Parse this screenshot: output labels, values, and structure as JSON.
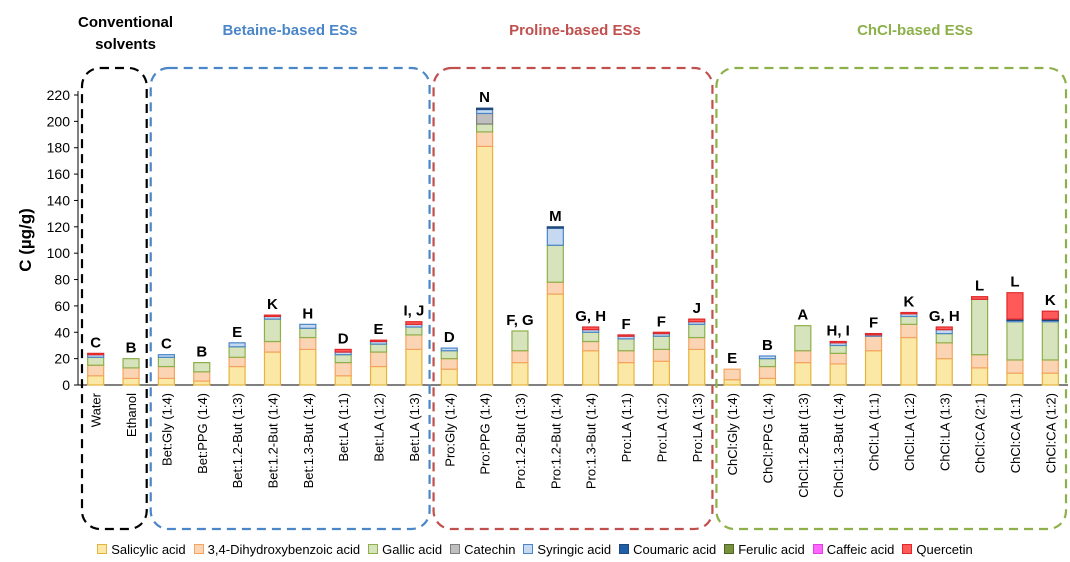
{
  "chart_data": {
    "type": "bar",
    "stacked": true,
    "ylabel": "C (µg/g)",
    "xlabel": "",
    "ylim": [
      0,
      220
    ],
    "yticks": [
      0,
      20,
      40,
      60,
      80,
      100,
      120,
      140,
      160,
      180,
      200,
      220
    ],
    "grid": false,
    "legend_position": "bottom",
    "groups": [
      {
        "title": "Conventional\nsolvents",
        "color": "#000000",
        "categories": [
          "Water",
          "Ethanol"
        ]
      },
      {
        "title": "Betaine-based ESs",
        "color": "#4a86c8",
        "categories": [
          "Bet:Gly (1:4)",
          "Bet:PPG (1:4)",
          "Bet:1.2-But (1:3)",
          "Bet:1.2-But (1:4)",
          "Bet:1.3-But (1:4)",
          "Bet:LA (1:1)",
          "Bet:LA (1:2)",
          "Bet:LA (1:3)"
        ]
      },
      {
        "title": "Proline-based ESs",
        "color": "#c0504d",
        "categories": [
          "Pro:Gly (1:4)",
          "Pro:PPG (1:4)",
          "Pro:1.2-But (1:3)",
          "Pro:1.2-But (1:4)",
          "Pro:1.3-But (1:4)",
          "Pro:LA (1:1)",
          "Pro:LA (1:2)",
          "Pro:LA (1:3)"
        ]
      },
      {
        "title": "ChCl-based ESs",
        "color": "#8db04a",
        "categories": [
          "ChCl:Gly (1:4)",
          "ChCl:PPG (1:4)",
          "ChCl:1.2-But (1:3)",
          "ChCl:1.3-But (1:4)",
          "ChCl:LA (1:1)",
          "ChCl:LA (1:2)",
          "ChCl:LA (1:3)",
          "ChCl:CA (2:1)",
          "ChCl:CA (1:1)",
          "ChCl:CA (1:2)"
        ]
      }
    ],
    "categories": [
      "Water",
      "Ethanol",
      "Bet:Gly (1:4)",
      "Bet:PPG (1:4)",
      "Bet:1.2-But (1:3)",
      "Bet:1.2-But (1:4)",
      "Bet:1.3-But (1:4)",
      "Bet:LA (1:1)",
      "Bet:LA (1:2)",
      "Bet:LA (1:3)",
      "Pro:Gly (1:4)",
      "Pro:PPG (1:4)",
      "Pro:1.2-But (1:3)",
      "Pro:1.2-But (1:4)",
      "Pro:1.3-But (1:4)",
      "Pro:LA (1:1)",
      "Pro:LA (1:2)",
      "Pro:LA (1:3)",
      "ChCl:Gly (1:4)",
      "ChCl:PPG (1:4)",
      "ChCl:1.2-But (1:3)",
      "ChCl:1.3-But (1:4)",
      "ChCl:LA (1:1)",
      "ChCl:LA (1:2)",
      "ChCl:LA (1:3)",
      "ChCl:CA (2:1)",
      "ChCl:CA (1:1)",
      "ChCl:CA (1:2)"
    ],
    "letters": [
      "C",
      "B",
      "C",
      "B",
      "E",
      "K",
      "H",
      "D",
      "E",
      "I, J",
      "D",
      "N",
      "F, G",
      "M",
      "G, H",
      "F",
      "F",
      "J",
      "E",
      "B",
      "A",
      "H, I",
      "F",
      "K",
      "G, H",
      "L",
      "L",
      "K"
    ],
    "series": [
      {
        "name": "Salicylic acid",
        "fill": "#fbe8a6",
        "stroke": "#e6b43a",
        "values": [
          7,
          5,
          5,
          3,
          14,
          25,
          27,
          7,
          14,
          27,
          12,
          181,
          17,
          69,
          26,
          17,
          18,
          27,
          4,
          5,
          17,
          16,
          26,
          36,
          20,
          13,
          9,
          9
        ]
      },
      {
        "name": "3,4-Dihydroxybenzoic acid",
        "fill": "#fbd4b4",
        "stroke": "#f4a460",
        "values": [
          8,
          8,
          9,
          7,
          7,
          8,
          9,
          10,
          11,
          11,
          8,
          11,
          9,
          9,
          7,
          9,
          9,
          9,
          8,
          9,
          9,
          8,
          11,
          10,
          12,
          10,
          10,
          10
        ]
      },
      {
        "name": "Gallic acid",
        "fill": "#d6e3bc",
        "stroke": "#8db04a",
        "values": [
          6,
          7,
          7,
          7,
          8,
          17,
          7,
          6,
          6,
          6,
          6,
          6,
          15,
          28,
          7,
          9,
          10,
          10,
          0,
          6,
          19,
          6,
          0,
          6,
          7,
          42,
          29,
          29
        ]
      },
      {
        "name": "Catechin",
        "fill": "#bfbfbf",
        "stroke": "#7f7f7f",
        "values": [
          0,
          0,
          0,
          0,
          0,
          0,
          0,
          0,
          0,
          0,
          0,
          8,
          0,
          0,
          0,
          0,
          0,
          0,
          0,
          0,
          0,
          0,
          0,
          0,
          0,
          0,
          0,
          0
        ]
      },
      {
        "name": "Syringic acid",
        "fill": "#c6d9f1",
        "stroke": "#4a86c8",
        "values": [
          2,
          0,
          2,
          0,
          3,
          2,
          3,
          2,
          2,
          2,
          2,
          3,
          0,
          13,
          2,
          2,
          2,
          2,
          0,
          2,
          0,
          2,
          1,
          2,
          3,
          0,
          1,
          1
        ]
      },
      {
        "name": "Coumaric acid",
        "fill": "#1f5fa8",
        "stroke": "#1f497d",
        "values": [
          0,
          0,
          0,
          0,
          0,
          0,
          0,
          0,
          0,
          0,
          0,
          1,
          0,
          1,
          0,
          0,
          0,
          0,
          0,
          0,
          0,
          0,
          0,
          0,
          0,
          0,
          1,
          1
        ]
      },
      {
        "name": "Ferulic acid",
        "fill": "#76933c",
        "stroke": "#4f6228",
        "values": [
          0,
          0,
          0,
          0,
          0,
          0,
          0,
          0,
          0,
          0,
          0,
          0,
          0,
          0,
          0,
          0,
          0,
          0,
          0,
          0,
          0,
          0,
          0,
          0,
          0,
          0,
          0,
          0
        ]
      },
      {
        "name": "Caffeic acid",
        "fill": "#ff66ff",
        "stroke": "#e040e0",
        "values": [
          0,
          0,
          0,
          0,
          0,
          0,
          0,
          0,
          0,
          0,
          0,
          0,
          0,
          0,
          0,
          0,
          0,
          0,
          0,
          0,
          0,
          0,
          0,
          0,
          0,
          0,
          0,
          0
        ]
      },
      {
        "name": "Quercetin",
        "fill": "#ff5a5a",
        "stroke": "#e0282a",
        "values": [
          1,
          0,
          0,
          0,
          0,
          1,
          0,
          2,
          1,
          2,
          0,
          0,
          0,
          0,
          2,
          1,
          1,
          2,
          0,
          0,
          0,
          1,
          1,
          1,
          2,
          2,
          20,
          6
        ]
      }
    ]
  }
}
